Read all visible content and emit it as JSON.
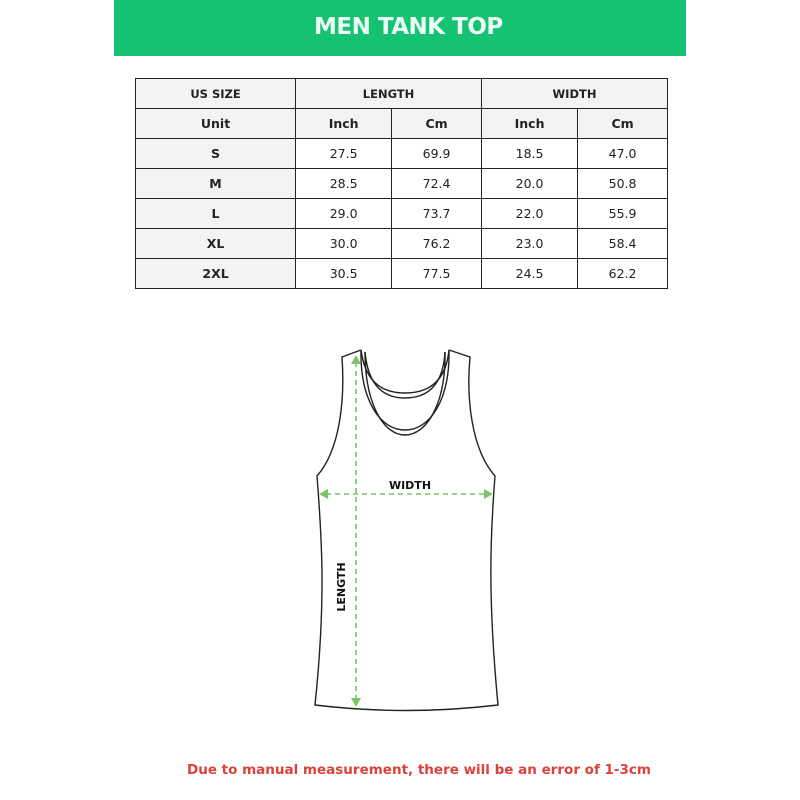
{
  "header": {
    "title": "MEN TANK TOP",
    "color": "#17c172"
  },
  "table": {
    "header": [
      "US SIZE",
      "LENGTH",
      "WIDTH"
    ],
    "units": [
      "Unit",
      "Inch",
      "Cm",
      "Inch",
      "Cm"
    ],
    "rows": [
      [
        "S",
        "27.5",
        "69.9",
        "18.5",
        "47.0"
      ],
      [
        "M",
        "28.5",
        "72.4",
        "20.0",
        "50.8"
      ],
      [
        "L",
        "29.0",
        "73.7",
        "22.0",
        "55.9"
      ],
      [
        "XL",
        "30.0",
        "76.2",
        "23.0",
        "58.4"
      ],
      [
        "2XL",
        "30.5",
        "77.5",
        "24.5",
        "62.2"
      ]
    ]
  },
  "diagram": {
    "width_label": "WIDTH",
    "length_label": "LENGTH",
    "arrow_color": "#7cc46a"
  },
  "footer": {
    "note": "Due to manual measurement, there will be an error of 1-3cm",
    "color": "#e0403a"
  }
}
